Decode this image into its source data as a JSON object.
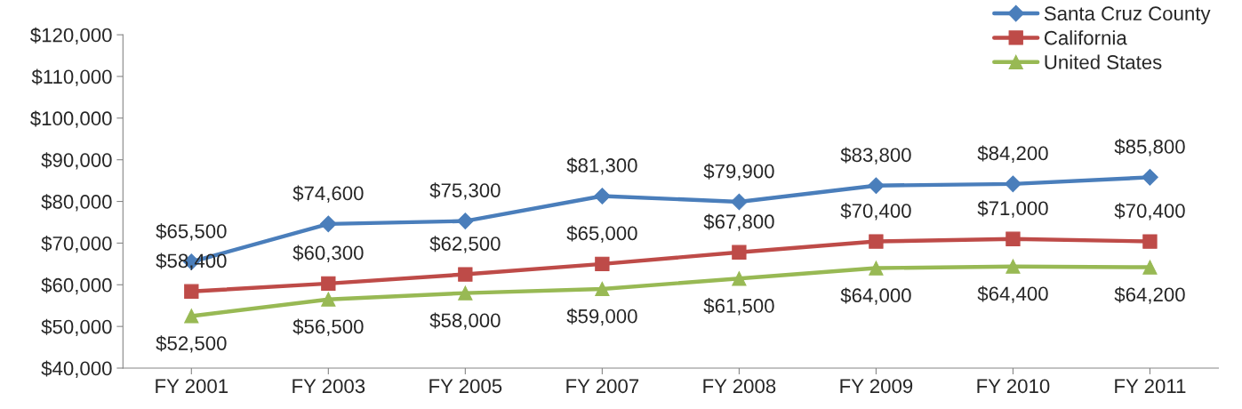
{
  "chart_data": {
    "type": "line",
    "categories": [
      "FY 2001",
      "FY 2003",
      "FY 2005",
      "FY 2007",
      "FY 2008",
      "FY 2009",
      "FY 2010",
      "FY 2011"
    ],
    "series": [
      {
        "name": "Santa Cruz County",
        "color": "#4a7ebb",
        "marker": "diamond",
        "values": [
          65500,
          74600,
          75300,
          81300,
          79900,
          83800,
          84200,
          85800
        ],
        "value_labels": [
          "$65,500",
          "$74,600",
          "$75,300",
          "$81,300",
          "$79,900",
          "$83,800",
          "$84,200",
          "$85,800"
        ]
      },
      {
        "name": "California",
        "color": "#be4b48",
        "marker": "square",
        "values": [
          58400,
          60300,
          62500,
          65000,
          67800,
          70400,
          71000,
          70400
        ],
        "value_labels": [
          "$58,400",
          "$60,300",
          "$62,500",
          "$65,000",
          "$67,800",
          "$70,400",
          "$71,000",
          "$70,400"
        ]
      },
      {
        "name": "United States",
        "color": "#98b954",
        "marker": "triangle",
        "values": [
          52500,
          56500,
          58000,
          59000,
          61500,
          64000,
          64400,
          64200
        ],
        "value_labels": [
          "$52,500",
          "$56,500",
          "$58,000",
          "$59,000",
          "$61,500",
          "$64,000",
          "$64,400",
          "$64,200"
        ]
      }
    ],
    "ylim": [
      40000,
      120000
    ],
    "yticks": [
      {
        "value": 40000,
        "label": "$40,000"
      },
      {
        "value": 50000,
        "label": "$50,000"
      },
      {
        "value": 60000,
        "label": "$60,000"
      },
      {
        "value": 70000,
        "label": "$70,000"
      },
      {
        "value": 80000,
        "label": "$80,000"
      },
      {
        "value": 90000,
        "label": "$90,000"
      },
      {
        "value": 100000,
        "label": "$100,000"
      },
      {
        "value": 110000,
        "label": "$110,000"
      },
      {
        "value": 120000,
        "label": "$120,000"
      }
    ],
    "grid": false,
    "legend": "top right",
    "line_style": "solid"
  }
}
